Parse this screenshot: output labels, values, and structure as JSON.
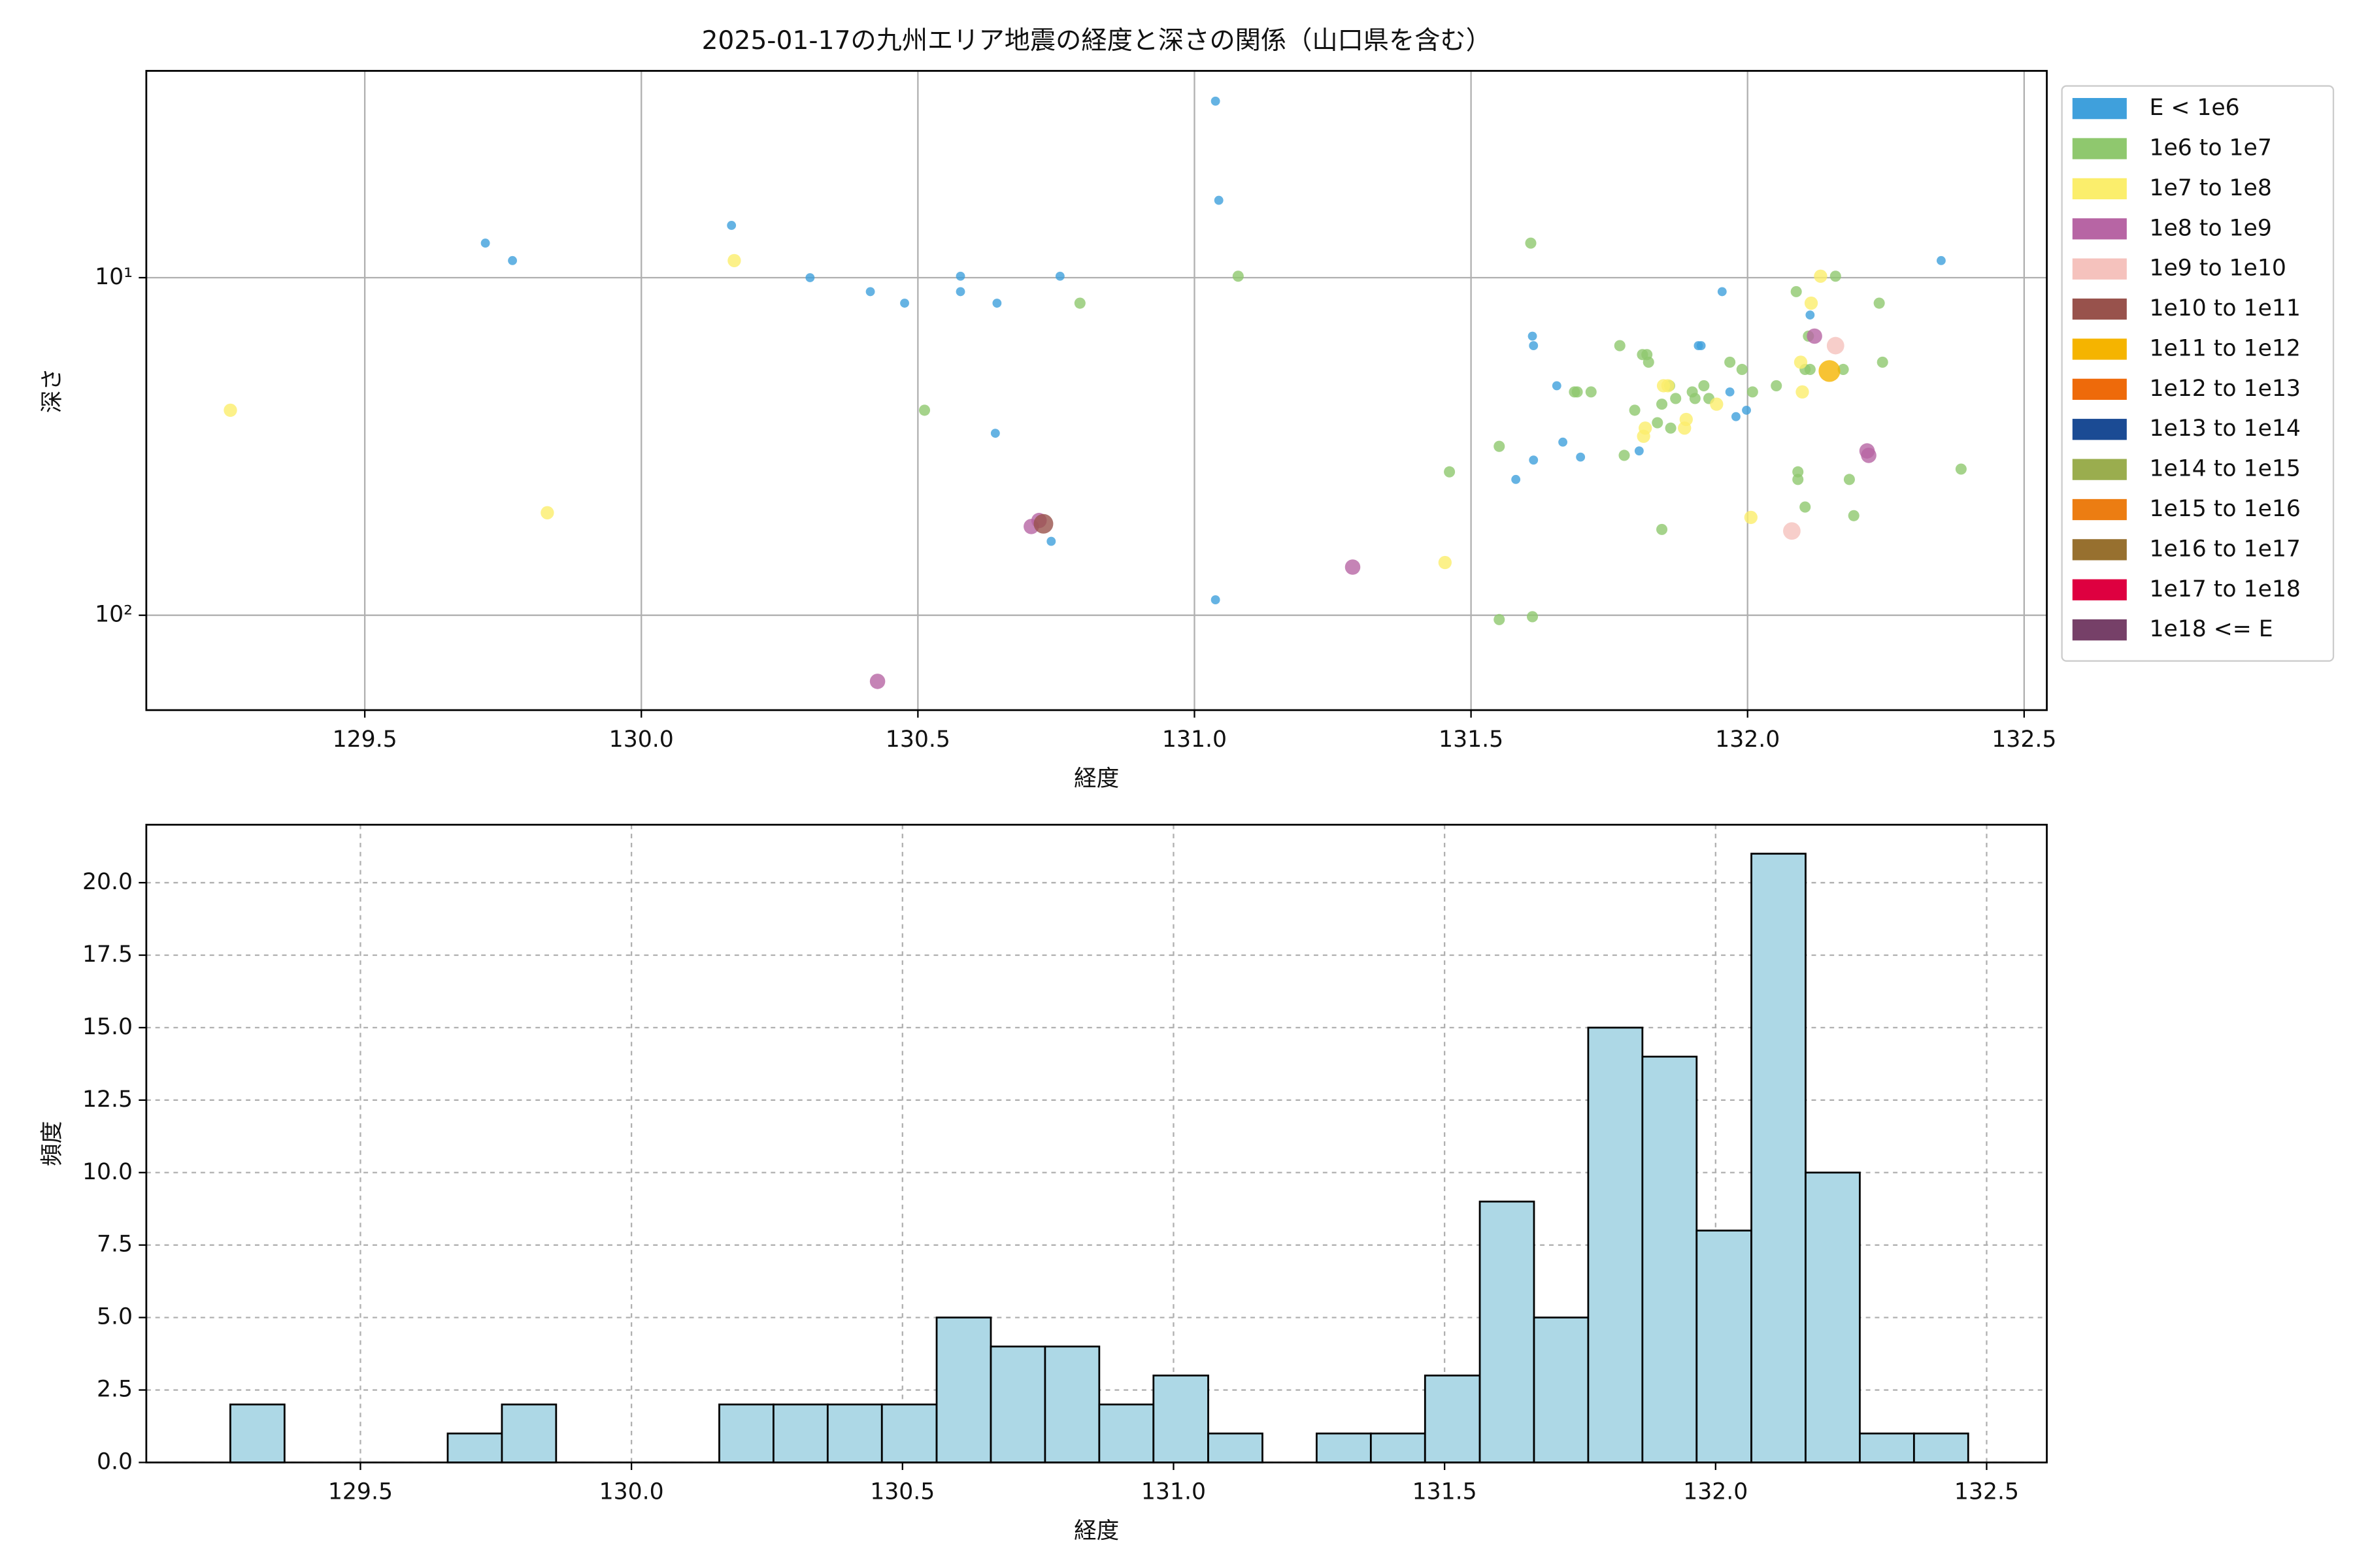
{
  "chart_data": [
    {
      "type": "scatter",
      "title": "2025-01-17の九州エリア地震の経度と深さの関係（山口県を含む）",
      "xlabel": "経度",
      "ylabel": "深さ",
      "xlim": [
        129.105,
        132.541
      ],
      "xticks": [
        129.5,
        {
          "value": 130,
          "label": "130.0"
        },
        130.5,
        {
          "value": 131,
          "label": "131.0"
        },
        131.5,
        {
          "value": 132,
          "label": "132.0"
        },
        132.5
      ],
      "ylim": [
        191,
        2.44
      ],
      "yscale": "log",
      "yticks": [
        {
          "value": 10,
          "label": "10¹"
        },
        {
          "value": 100,
          "label": "10²"
        }
      ],
      "grid": true,
      "grid_linestyle": "solid",
      "legend": "outside upper right",
      "series": [
        {
          "name": "E < 1e6",
          "color": "#3fa0dc",
          "x": [
            129.718,
            129.767,
            130.163,
            130.305,
            130.414,
            130.476,
            130.577,
            130.577,
            130.643,
            130.64,
            130.741,
            130.757,
            131.038,
            131.044,
            131.038,
            131.611,
            131.613,
            131.655,
            131.581,
            131.613,
            131.698,
            131.804,
            131.911,
            131.916,
            131.954,
            131.968,
            131.979,
            131.998,
            132.113,
            132.35,
            131.666
          ],
          "values": [
            7.9,
            8.9,
            7.0,
            10,
            11,
            11.9,
            9.9,
            11,
            11.9,
            28.9,
            60.4,
            9.9,
            3.0,
            5.9,
            90,
            14.9,
            15.9,
            20.9,
            39.6,
            34.7,
            34.0,
            32.6,
            15.9,
            15.9,
            11,
            21.8,
            25.8,
            24.7,
            12.9,
            8.9,
            30.7
          ]
        },
        {
          "name": "1e6 to 1e7",
          "color": "#8fc86e",
          "x": [
            130.512,
            130.793,
            131.079,
            131.461,
            131.551,
            131.551,
            131.608,
            131.611,
            131.687,
            131.692,
            131.717,
            131.769,
            131.777,
            131.796,
            131.81,
            131.821,
            131.818,
            131.837,
            131.845,
            131.845,
            131.859,
            131.861,
            131.87,
            131.9,
            131.905,
            131.921,
            131.93,
            131.968,
            131.99,
            132.009,
            132.052,
            132.088,
            132.091,
            132.091,
            132.104,
            132.104,
            132.11,
            132.113,
            132.159,
            132.173,
            132.184,
            132.192,
            132.238,
            132.244,
            132.386
          ],
          "values": [
            24.7,
            11.9,
            9.9,
            37.6,
            31.6,
            103,
            7.9,
            101,
            21.8,
            21.8,
            21.8,
            15.9,
            33.6,
            24.7,
            16.9,
            17.8,
            16.9,
            26.9,
            55.7,
            23.7,
            20.9,
            27.9,
            22.8,
            21.8,
            22.8,
            20.9,
            22.8,
            17.8,
            18.7,
            21.8,
            20.9,
            11,
            37.6,
            39.6,
            47.8,
            18.7,
            14.9,
            18.7,
            9.9,
            18.7,
            39.6,
            50.7,
            11.9,
            17.8,
            36.9
          ]
        },
        {
          "name": "1e7 to 1e8",
          "color": "#fbee6c",
          "x": [
            129.257,
            129.83,
            130.168,
            131.453,
            131.812,
            131.815,
            131.848,
            131.856,
            131.886,
            131.889,
            131.944,
            132.006,
            132.096,
            132.099,
            132.115,
            132.132
          ],
          "values": [
            24.7,
            49.7,
            8.9,
            69.8,
            29.5,
            27.9,
            20.9,
            20.9,
            27.9,
            26.3,
            23.7,
            51.3,
            17.8,
            21.8,
            11.9,
            9.9
          ]
        },
        {
          "name": "1e8 to 1e9",
          "color": "#b765a4",
          "x": [
            130.427,
            130.705,
            130.719,
            131.286,
            132.121,
            132.216,
            132.219
          ],
          "values": [
            157,
            54.6,
            52.4,
            72,
            14.9,
            32.6,
            33.6
          ]
        },
        {
          "name": "1e9 to 1e10",
          "color": "#f5c2bd",
          "x": [
            132.08,
            132.159
          ],
          "values": [
            56.3,
            15.9
          ]
        },
        {
          "name": "1e10 to 1e11",
          "color": "#98524c",
          "x": [
            130.727
          ],
          "values": [
            53.6
          ]
        },
        {
          "name": "1e11 to 1e12",
          "color": "#f5b400",
          "x": [
            132.148
          ],
          "values": [
            18.9
          ]
        },
        {
          "name": "1e12 to 1e13",
          "color": "#ee6a0a",
          "x": [],
          "values": []
        },
        {
          "name": "1e13 to 1e14",
          "color": "#1b4b94",
          "x": [],
          "values": []
        },
        {
          "name": "1e14 to 1e15",
          "color": "#9aad4e",
          "x": [],
          "values": []
        },
        {
          "name": "1e15 to 1e16",
          "color": "#ec7d12",
          "x": [],
          "values": []
        },
        {
          "name": "1e16 to 1e17",
          "color": "#97702f",
          "x": [],
          "values": []
        },
        {
          "name": "1e17 to 1e18",
          "color": "#de0040",
          "x": [],
          "values": []
        },
        {
          "name": "1e18 <= E",
          "color": "#764068",
          "x": [],
          "values": []
        }
      ]
    },
    {
      "type": "histogram",
      "xlabel": "経度",
      "ylabel": "頻度",
      "color": "#add8e6",
      "xlim": [
        129.105,
        132.611
      ],
      "xticks": [
        129.5,
        {
          "value": 130,
          "label": "130.0"
        },
        130.5,
        {
          "value": 131,
          "label": "131.0"
        },
        131.5,
        {
          "value": 132,
          "label": "132.0"
        },
        132.5
      ],
      "ylim": [
        0,
        22.0
      ],
      "yticks": [
        {
          "value": 0,
          "label": "0.0"
        },
        2.5,
        {
          "value": 5,
          "label": "5.0"
        },
        7.5,
        {
          "value": 10,
          "label": "10.0"
        },
        12.5,
        {
          "value": 15,
          "label": "15.0"
        },
        17.5,
        {
          "value": 20,
          "label": "20.0"
        }
      ],
      "grid": true,
      "grid_linestyle": "dashed",
      "bins": [
        129.26,
        129.36,
        129.46,
        129.561,
        129.661,
        129.761,
        129.861,
        129.961,
        130.062,
        130.162,
        130.262,
        130.362,
        130.462,
        130.563,
        130.663,
        130.763,
        130.863,
        130.963,
        131.064,
        131.164,
        131.264,
        131.364,
        131.464,
        131.565,
        131.665,
        131.765,
        131.865,
        131.965,
        132.066,
        132.166,
        132.266,
        132.366,
        132.466
      ],
      "values": [
        2,
        0,
        0,
        0,
        1,
        2,
        0,
        0,
        0,
        2,
        2,
        2,
        2,
        5,
        4,
        4,
        2,
        3,
        1,
        0,
        1,
        1,
        3,
        9,
        5,
        15,
        14,
        8,
        21,
        10,
        1,
        1
      ]
    }
  ]
}
